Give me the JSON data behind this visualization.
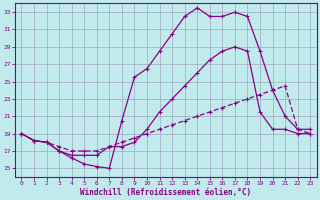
{
  "xlabel": "Windchill (Refroidissement éolien,°C)",
  "bg_color": "#c0eaec",
  "grid_color": "#a0a8c0",
  "line_color": "#880088",
  "x_ticks": [
    0,
    1,
    2,
    3,
    4,
    5,
    6,
    7,
    8,
    9,
    10,
    11,
    12,
    13,
    14,
    15,
    16,
    17,
    18,
    19,
    20,
    21,
    22,
    23
  ],
  "xlim": [
    -0.5,
    23.5
  ],
  "ylim": [
    14,
    34
  ],
  "y_ticks": [
    15,
    17,
    19,
    21,
    23,
    25,
    27,
    29,
    31,
    33
  ],
  "line1_x": [
    0,
    1,
    2,
    3,
    4,
    5,
    6,
    7,
    8,
    9,
    10,
    11,
    12,
    13,
    14,
    15,
    16,
    17,
    18,
    19,
    20,
    21,
    22,
    23
  ],
  "line1_y": [
    19,
    18.2,
    18.0,
    17.0,
    16.2,
    15.5,
    15.2,
    15.0,
    20.5,
    25.5,
    26.5,
    28.5,
    30.5,
    32.5,
    33.5,
    32.5,
    32.5,
    33.0,
    32.5,
    28.5,
    24.0,
    21.0,
    19.5,
    19.5
  ],
  "line2_x": [
    0,
    1,
    2,
    3,
    4,
    5,
    6,
    7,
    8,
    9,
    10,
    11,
    12,
    13,
    14,
    15,
    16,
    17,
    18,
    19,
    20,
    21,
    22,
    23
  ],
  "line2_y": [
    19,
    18.2,
    18.0,
    17.0,
    16.5,
    16.5,
    16.5,
    17.5,
    17.5,
    18.0,
    19.5,
    21.5,
    23.0,
    24.5,
    26.0,
    27.5,
    28.5,
    29.0,
    28.5,
    21.5,
    19.5,
    19.5,
    19.0,
    19.0
  ],
  "line3_x": [
    0,
    1,
    2,
    3,
    4,
    5,
    6,
    7,
    8,
    9,
    10,
    11,
    12,
    13,
    14,
    15,
    16,
    17,
    18,
    19,
    20,
    21,
    22,
    23
  ],
  "line3_y": [
    19,
    18.2,
    18.0,
    17.5,
    17.0,
    17.0,
    17.0,
    17.5,
    18.0,
    18.5,
    19.0,
    19.5,
    20.0,
    20.5,
    21.0,
    21.5,
    22.0,
    22.5,
    23.0,
    23.5,
    24.0,
    24.5,
    19.5,
    19.0
  ]
}
